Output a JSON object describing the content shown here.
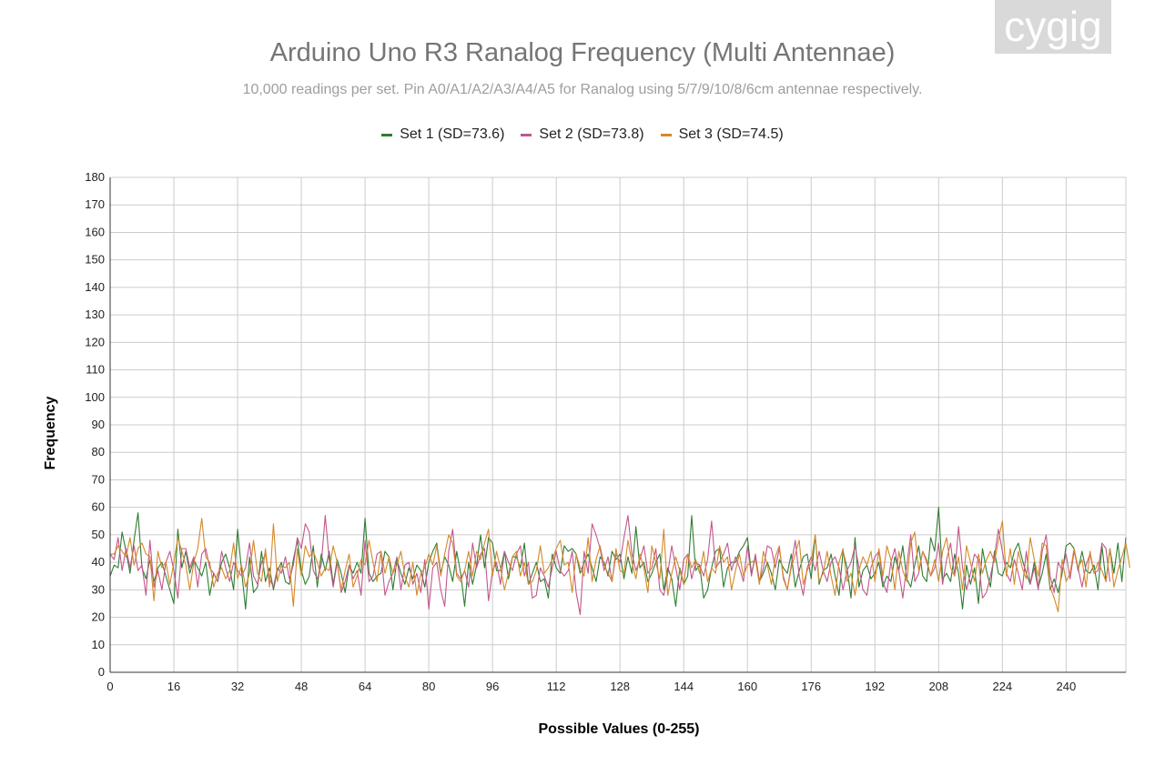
{
  "watermark": "cygig",
  "chart_data": {
    "type": "line",
    "title": "Arduino Uno R3 Ranalog Frequency (Multi Antennae)",
    "subtitle": "10,000 readings per set. Pin A0/A1/A2/A3/A4/A5 for Ranalog using 5/7/9/10/8/6cm antennae respectively.",
    "xlabel": "Possible Values (0-255)",
    "ylabel": "Frequency",
    "xlim": [
      0,
      255
    ],
    "ylim": [
      0,
      180
    ],
    "xticks": [
      0,
      16,
      32,
      48,
      64,
      80,
      96,
      112,
      128,
      144,
      160,
      176,
      192,
      208,
      224,
      240
    ],
    "yticks": [
      0,
      10,
      20,
      30,
      40,
      50,
      60,
      70,
      80,
      90,
      100,
      110,
      120,
      130,
      140,
      150,
      160,
      170,
      180
    ],
    "grid": true,
    "legend_position": "top",
    "series": [
      {
        "name": "Set 1 (SD=73.6)",
        "color": "#2e7d32",
        "values": [
          35,
          39,
          38,
          51,
          44,
          36,
          48,
          58,
          38,
          34,
          41,
          33,
          38,
          40,
          35,
          30,
          25,
          52,
          38,
          44,
          36,
          41,
          38,
          35,
          40,
          28,
          36,
          33,
          40,
          43,
          38,
          30,
          52,
          37,
          23,
          42,
          29,
          31,
          44,
          33,
          38,
          30,
          37,
          40,
          33,
          32,
          41,
          48,
          37,
          32,
          35,
          46,
          31,
          43,
          37,
          44,
          32,
          41,
          36,
          29,
          39,
          36,
          40,
          36,
          56,
          36,
          33,
          35,
          36,
          44,
          42,
          30,
          41,
          36,
          32,
          38,
          34,
          39,
          37,
          31,
          40,
          44,
          47,
          36,
          42,
          39,
          33,
          44,
          36,
          24,
          40,
          32,
          39,
          50,
          38,
          49,
          47,
          37,
          37,
          44,
          34,
          42,
          42,
          38,
          47,
          32,
          36,
          40,
          33,
          34,
          27,
          43,
          38,
          36,
          46,
          44,
          45,
          43,
          36,
          40,
          43,
          38,
          33,
          42,
          40,
          35,
          44,
          41,
          43,
          34,
          42,
          36,
          53,
          38,
          40,
          33,
          36,
          40,
          43,
          30,
          38,
          34,
          24,
          38,
          32,
          35,
          57,
          37,
          39,
          27,
          30,
          38,
          44,
          45,
          31,
          38,
          40,
          40,
          44,
          46,
          49,
          36,
          42,
          33,
          36,
          40,
          36,
          30,
          41,
          38,
          36,
          43,
          31,
          37,
          42,
          43,
          34,
          50,
          32,
          37,
          38,
          43,
          35,
          28,
          44,
          38,
          27,
          49,
          31,
          37,
          39,
          34,
          36,
          40,
          31,
          35,
          33,
          42,
          37,
          46,
          34,
          31,
          39,
          46,
          35,
          33,
          49,
          44,
          60,
          34,
          36,
          33,
          43,
          36,
          23,
          39,
          32,
          38,
          25,
          45,
          37,
          31,
          44,
          36,
          35,
          40,
          38,
          44,
          47,
          41,
          36,
          32,
          40,
          31,
          36,
          43,
          30,
          34,
          29,
          36,
          46,
          47,
          45,
          37,
          44,
          37,
          36,
          39,
          30,
          46,
          33,
          45,
          36,
          47,
          33,
          49
        ]
      },
      {
        "name": "Set 2 (SD=73.8)",
        "color": "#c2578b",
        "values": [
          43,
          41,
          49,
          37,
          45,
          38,
          46,
          37,
          39,
          28,
          48,
          31,
          37,
          30,
          40,
          44,
          37,
          27,
          45,
          45,
          38,
          42,
          31,
          43,
          45,
          38,
          36,
          33,
          44,
          38,
          33,
          40,
          37,
          35,
          38,
          47,
          35,
          32,
          40,
          43,
          34,
          31,
          38,
          36,
          42,
          34,
          39,
          49,
          45,
          54,
          51,
          37,
          34,
          39,
          57,
          41,
          31,
          40,
          29,
          33,
          39,
          34,
          37,
          28,
          48,
          33,
          35,
          43,
          44,
          28,
          33,
          36,
          42,
          30,
          39,
          40,
          32,
          36,
          29,
          41,
          23,
          38,
          40,
          30,
          24,
          44,
          52,
          36,
          34,
          37,
          31,
          47,
          38,
          43,
          45,
          26,
          37,
          40,
          32,
          44,
          40,
          37,
          43,
          46,
          35,
          40,
          27,
          28,
          38,
          35,
          31,
          38,
          44,
          37,
          35,
          37,
          44,
          29,
          21,
          44,
          36,
          54,
          50,
          45,
          37,
          42,
          33,
          43,
          40,
          49,
          57,
          43,
          37,
          41,
          46,
          36,
          38,
          45,
          30,
          28,
          36,
          46,
          38,
          30,
          41,
          43,
          34,
          40,
          39,
          35,
          41,
          55,
          38,
          40,
          43,
          47,
          37,
          42,
          38,
          33,
          46,
          35,
          43,
          33,
          38,
          46,
          45,
          38,
          45,
          35,
          30,
          39,
          48,
          35,
          28,
          38,
          42,
          37,
          44,
          37,
          33,
          40,
          42,
          38,
          30,
          37,
          40,
          46,
          38,
          30,
          28,
          38,
          42,
          44,
          33,
          29,
          40,
          45,
          37,
          27,
          39,
          50,
          33,
          36,
          44,
          40,
          35,
          38,
          47,
          32,
          41,
          47,
          35,
          53,
          38,
          30,
          36,
          43,
          41,
          27,
          29,
          35,
          42,
          52,
          44,
          36,
          33,
          41,
          36,
          30,
          44,
          32,
          38,
          30,
          44,
          50,
          35,
          29,
          40,
          37,
          43,
          34,
          44,
          38,
          31,
          39,
          43,
          36,
          37,
          47,
          45,
          33
        ]
      },
      {
        "name": "Set 3 (SD=74.5)",
        "color": "#d4892a",
        "values": [
          43,
          43,
          46,
          44,
          42,
          49,
          39,
          45,
          47,
          43,
          42,
          26,
          44,
          38,
          40,
          32,
          40,
          49,
          44,
          39,
          30,
          40,
          45,
          56,
          42,
          40,
          31,
          36,
          38,
          34,
          37,
          47,
          34,
          39,
          31,
          36,
          48,
          36,
          33,
          45,
          31,
          54,
          33,
          39,
          38,
          40,
          24,
          45,
          35,
          46,
          42,
          44,
          40,
          35,
          38,
          37,
          46,
          40,
          30,
          37,
          43,
          31,
          35,
          41,
          39,
          48,
          40,
          33,
          44,
          36,
          42,
          36,
          39,
          44,
          35,
          31,
          40,
          28,
          36,
          38,
          43,
          39,
          46,
          35,
          43,
          50,
          47,
          35,
          33,
          37,
          44,
          35,
          44,
          41,
          47,
          52,
          35,
          44,
          38,
          30,
          36,
          42,
          44,
          35,
          40,
          32,
          33,
          37,
          46,
          36,
          38,
          41,
          45,
          48,
          39,
          40,
          29,
          43,
          38,
          35,
          49,
          33,
          41,
          46,
          39,
          36,
          33,
          45,
          37,
          36,
          48,
          40,
          34,
          43,
          38,
          29,
          46,
          40,
          34,
          52,
          28,
          36,
          42,
          37,
          32,
          43,
          38,
          41,
          36,
          44,
          33,
          38,
          36,
          46,
          40,
          42,
          30,
          37,
          43,
          35,
          39,
          40,
          41,
          32,
          44,
          39,
          32,
          42,
          46,
          34,
          30,
          38,
          43,
          48,
          32,
          37,
          40,
          50,
          33,
          36,
          44,
          35,
          28,
          40,
          45,
          33,
          36,
          28,
          37,
          42,
          39,
          44,
          33,
          45,
          35,
          46,
          41,
          30,
          44,
          37,
          33,
          47,
          51,
          37,
          44,
          41,
          35,
          41,
          33,
          44,
          49,
          38,
          35,
          42,
          30,
          46,
          40,
          33,
          43,
          36,
          41,
          44,
          40,
          48,
          55,
          35,
          45,
          32,
          44,
          38,
          34,
          49,
          41,
          35,
          47,
          46,
          31,
          27,
          22,
          41,
          33,
          36,
          45,
          38,
          41,
          31,
          44,
          36,
          40,
          37,
          33,
          45,
          31,
          37,
          42,
          47,
          38
        ]
      }
    ]
  }
}
